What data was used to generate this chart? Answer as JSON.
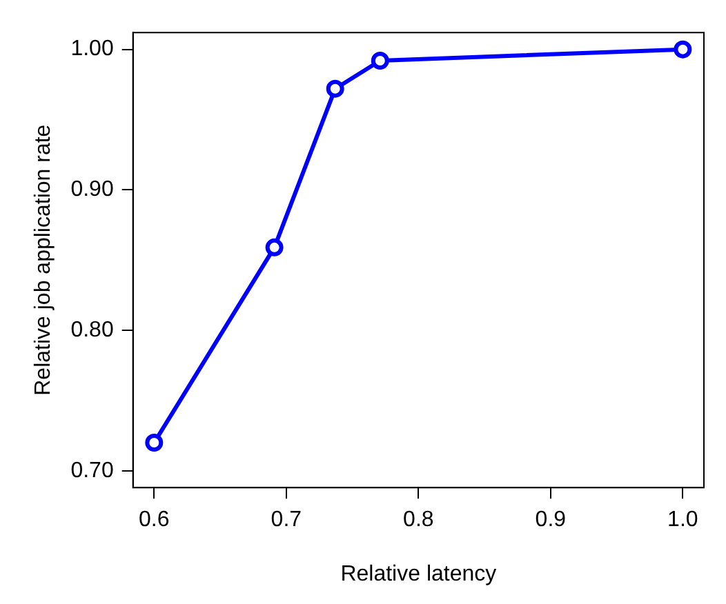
{
  "chart_data": {
    "type": "line",
    "xlabel": "Relative latency",
    "ylabel": "Relative job application rate",
    "x": [
      0.6,
      0.691,
      0.737,
      0.771,
      1.0
    ],
    "series": [
      {
        "color": "#0000ff",
        "values": [
          0.72,
          0.859,
          0.972,
          0.992,
          1.0
        ]
      }
    ],
    "xlim": [
      0.584,
      1.016
    ],
    "ylim": [
      0.688,
      1.012
    ],
    "xticks": [
      0.6,
      0.7,
      0.8,
      0.9,
      {
        "value": 1.0,
        "label": "1.0"
      }
    ],
    "yticks": [
      {
        "value": 0.7,
        "label": "0.70"
      },
      {
        "value": 0.8,
        "label": "0.80"
      },
      {
        "value": 0.9,
        "label": "0.90"
      },
      {
        "value": 1.0,
        "label": "1.00"
      }
    ],
    "grid": false,
    "legend": false,
    "marker": "circle",
    "line_style": "solid"
  }
}
